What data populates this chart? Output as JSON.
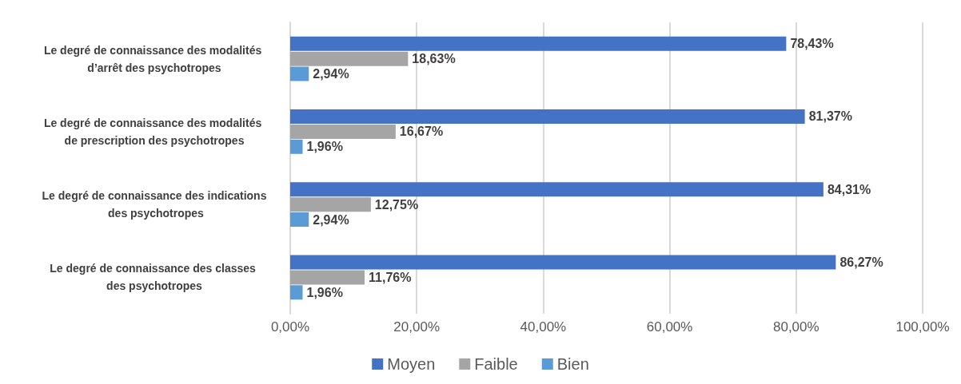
{
  "chart_data": {
    "type": "bar",
    "orientation": "horizontal",
    "categories": [
      "Le degré de connaissance des modalités d’arrêt des psychotropes",
      "Le degré de connaissance des modalités de prescription des psychotropes",
      "Le degré de connaissance des indications des psychotropes",
      "Le degré de connaissance des classes des psychotropes"
    ],
    "series": [
      {
        "name": "Moyen",
        "color": "#4472c4",
        "values": [
          78.43,
          81.37,
          84.31,
          86.27
        ],
        "value_labels": [
          "78,43%",
          "81,37%",
          "84,31%",
          "86,27%"
        ]
      },
      {
        "name": "Faible",
        "color": "#a5a5a5",
        "values": [
          18.63,
          16.67,
          12.75,
          11.76
        ],
        "value_labels": [
          "18,63%",
          "16,67%",
          "12,75%",
          "11,76%"
        ]
      },
      {
        "name": "Bien",
        "color": "#5b9bd5",
        "values": [
          2.94,
          1.96,
          2.94,
          1.96
        ],
        "value_labels": [
          "2,94%",
          "1,96%",
          "2,94%",
          "1,96%"
        ]
      }
    ],
    "xlim": [
      0,
      100
    ],
    "xticks": [
      {
        "value": 0,
        "label": "0,00%"
      },
      {
        "value": 20,
        "label": "20,00%"
      },
      {
        "value": 40,
        "label": "40,00%"
      },
      {
        "value": 60,
        "label": "60,00%"
      },
      {
        "value": 80,
        "label": "80,00%"
      },
      {
        "value": 100,
        "label": "100,00%"
      }
    ],
    "grid": "x",
    "legend": "bottom"
  }
}
